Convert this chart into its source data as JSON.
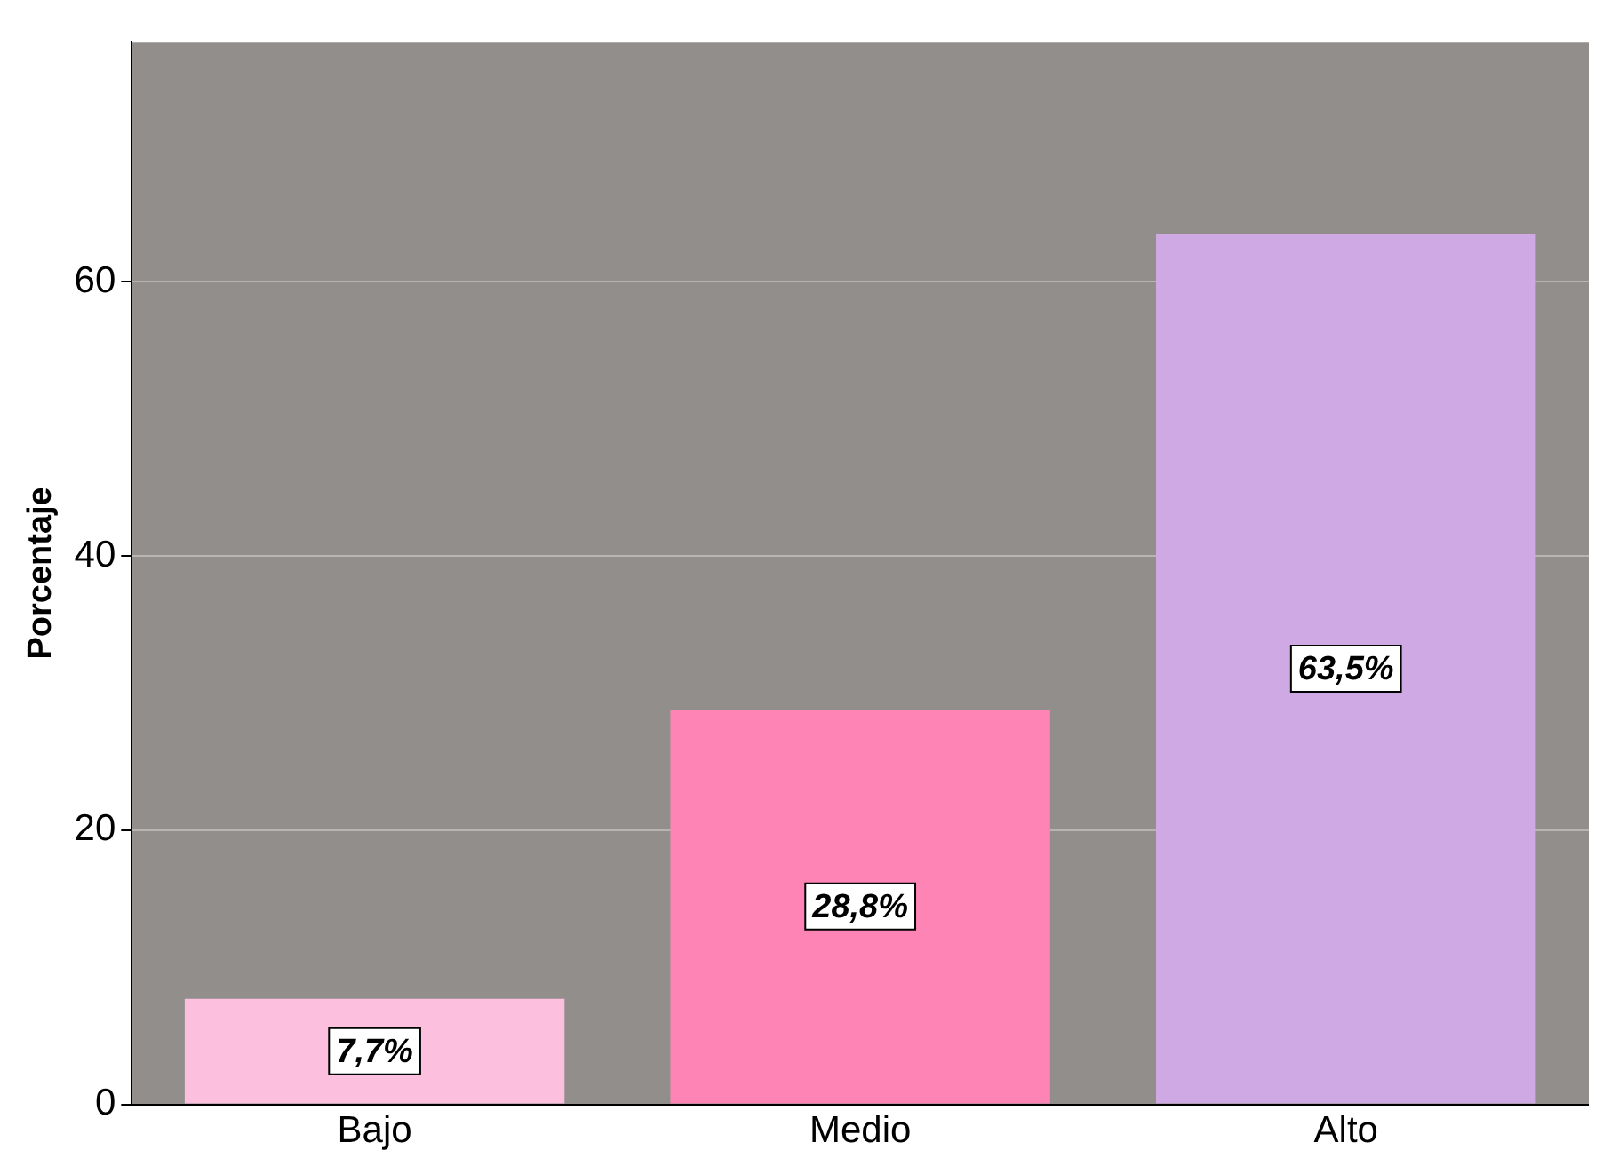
{
  "chart_data": {
    "type": "bar",
    "ylabel": "Porcentaje",
    "categories": [
      "Bajo",
      "Medio",
      "Alto"
    ],
    "values": [
      7.7,
      28.8,
      63.5
    ],
    "colors": [
      "#fcc0de",
      "#fd84b4",
      "#cfa9e3"
    ],
    "value_labels": [
      "7,7%",
      "28,8%",
      "63,5%"
    ],
    "ylim": [
      0,
      77.5
    ],
    "yticks": [
      0,
      20,
      40,
      60
    ],
    "grid": "y",
    "legend": false
  }
}
